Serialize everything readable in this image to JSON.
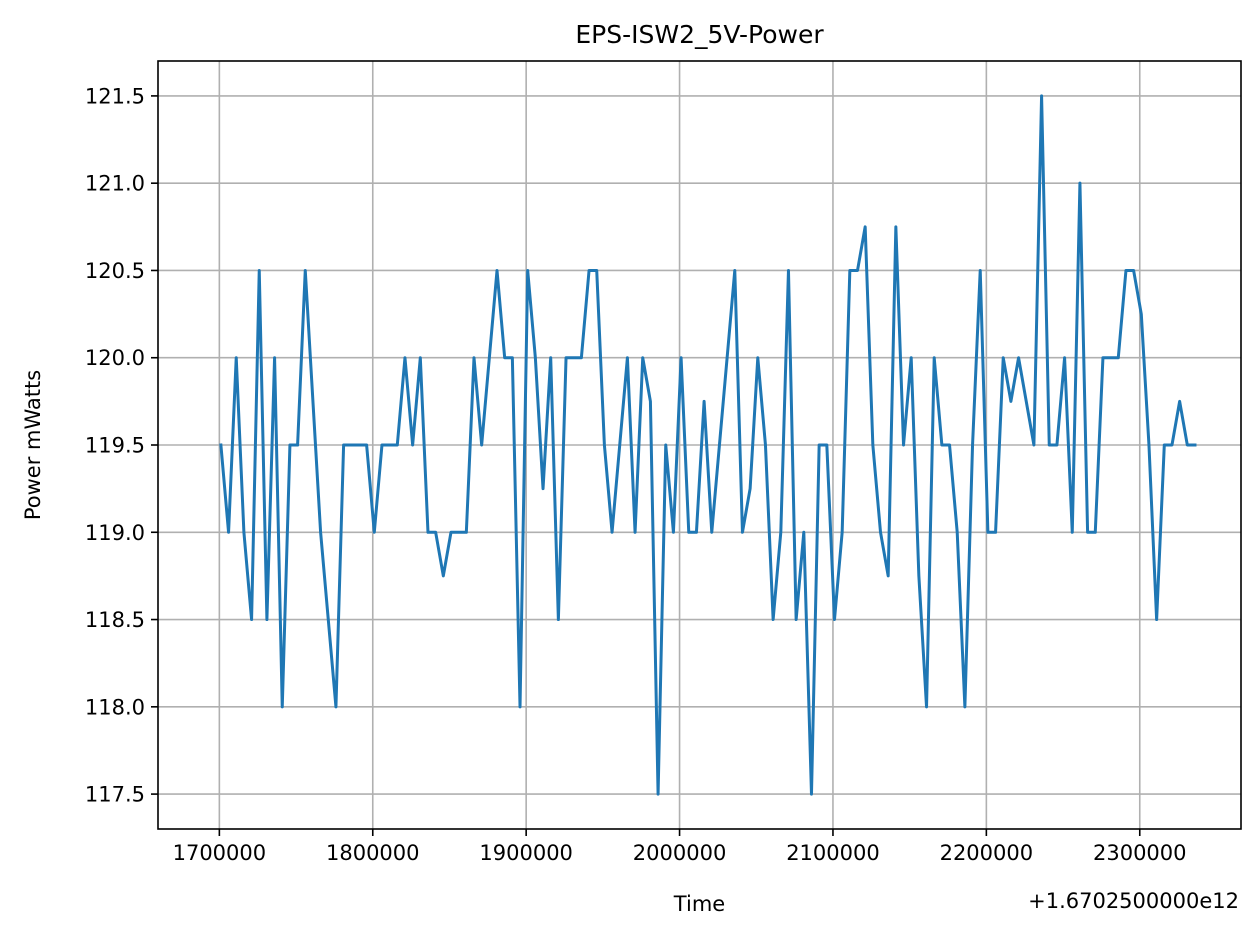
{
  "chart_data": {
    "type": "line",
    "title": "EPS-ISW2_5V-Power",
    "xlabel": "Time",
    "ylabel": "Power mWatts",
    "x_offset_label": "+1.6702500000e12",
    "grid": true,
    "xlim": [
      1670251660000,
      1670252366000
    ],
    "ylim": [
      117.3,
      121.7
    ],
    "x_ticks": [
      {
        "value": 1670251700000,
        "label": "1700000"
      },
      {
        "value": 1670251800000,
        "label": "1800000"
      },
      {
        "value": 1670251900000,
        "label": "1900000"
      },
      {
        "value": 1670252000000,
        "label": "2000000"
      },
      {
        "value": 1670252100000,
        "label": "2100000"
      },
      {
        "value": 1670252200000,
        "label": "2200000"
      },
      {
        "value": 1670252300000,
        "label": "2300000"
      }
    ],
    "y_ticks": [
      {
        "value": 117.5,
        "label": "117.5"
      },
      {
        "value": 118.0,
        "label": "118.0"
      },
      {
        "value": 118.5,
        "label": "118.5"
      },
      {
        "value": 119.0,
        "label": "119.0"
      },
      {
        "value": 119.5,
        "label": "119.5"
      },
      {
        "value": 120.0,
        "label": "120.0"
      },
      {
        "value": 120.5,
        "label": "120.5"
      },
      {
        "value": 121.0,
        "label": "121.0"
      },
      {
        "value": 121.5,
        "label": "121.5"
      }
    ],
    "series": [
      {
        "color": "#1f77b4",
        "x": [
          1670251701000,
          1670251706000,
          1670251711000,
          1670251716000,
          1670251721000,
          1670251726000,
          1670251731000,
          1670251736000,
          1670251741000,
          1670251746000,
          1670251751000,
          1670251756000,
          1670251761000,
          1670251766000,
          1670251771000,
          1670251776000,
          1670251781000,
          1670251786000,
          1670251791000,
          1670251796000,
          1670251801000,
          1670251806000,
          1670251811000,
          1670251816000,
          1670251821000,
          1670251826000,
          1670251831000,
          1670251836000,
          1670251841000,
          1670251846000,
          1670251851000,
          1670251856000,
          1670251861000,
          1670251866000,
          1670251871000,
          1670251876000,
          1670251881000,
          1670251886000,
          1670251891000,
          1670251896000,
          1670251901000,
          1670251906000,
          1670251911000,
          1670251916000,
          1670251921000,
          1670251926000,
          1670251931000,
          1670251936000,
          1670251941000,
          1670251946000,
          1670251951000,
          1670251956000,
          1670251961000,
          1670251966000,
          1670251971000,
          1670251976000,
          1670251981000,
          1670251986000,
          1670251991000,
          1670251996000,
          1670252001000,
          1670252006000,
          1670252011000,
          1670252016000,
          1670252021000,
          1670252026000,
          1670252031000,
          1670252036000,
          1670252041000,
          1670252046000,
          1670252051000,
          1670252056000,
          1670252061000,
          1670252066000,
          1670252071000,
          1670252076000,
          1670252081000,
          1670252086000,
          1670252091000,
          1670252096000,
          1670252101000,
          1670252106000,
          1670252111000,
          1670252116000,
          1670252121000,
          1670252126000,
          1670252131000,
          1670252136000,
          1670252141000,
          1670252146000,
          1670252151000,
          1670252156000,
          1670252161000,
          1670252166000,
          1670252171000,
          1670252176000,
          1670252181000,
          1670252186000,
          1670252191000,
          1670252196000,
          1670252201000,
          1670252206000,
          1670252211000,
          1670252216000,
          1670252221000,
          1670252226000,
          1670252231000,
          1670252236000,
          1670252241000,
          1670252246000,
          1670252251000,
          1670252256000,
          1670252261000,
          1670252266000,
          1670252271000,
          1670252276000,
          1670252281000,
          1670252286000,
          1670252291000,
          1670252296000,
          1670252301000,
          1670252306000,
          1670252311000,
          1670252316000,
          1670252321000,
          1670252326000,
          1670252331000,
          1670252336000
        ],
        "y": [
          119.5,
          119.0,
          120.0,
          119.0,
          118.5,
          120.5,
          118.5,
          120.0,
          118.0,
          119.5,
          119.5,
          120.5,
          119.75,
          119.0,
          118.5,
          118.0,
          119.5,
          119.5,
          119.5,
          119.5,
          119.0,
          119.5,
          119.5,
          119.5,
          120.0,
          119.5,
          120.0,
          119.0,
          119.0,
          118.75,
          119.0,
          119.0,
          119.0,
          120.0,
          119.5,
          120.0,
          120.5,
          120.0,
          120.0,
          118.0,
          120.5,
          120.0,
          119.25,
          120.0,
          118.5,
          120.0,
          120.0,
          120.0,
          120.5,
          120.5,
          119.5,
          119.0,
          119.5,
          120.0,
          119.0,
          120.0,
          119.75,
          117.5,
          119.5,
          119.0,
          120.0,
          119.0,
          119.0,
          119.75,
          119.0,
          119.5,
          120.0,
          120.5,
          119.0,
          119.25,
          120.0,
          119.5,
          118.5,
          119.0,
          120.5,
          118.5,
          119.0,
          117.5,
          119.5,
          119.5,
          118.5,
          119.0,
          120.5,
          120.5,
          120.75,
          119.5,
          119.0,
          118.75,
          120.75,
          119.5,
          120.0,
          118.75,
          118.0,
          120.0,
          119.5,
          119.5,
          119.0,
          118.0,
          119.5,
          120.5,
          119.0,
          119.0,
          120.0,
          119.75,
          120.0,
          119.75,
          119.5,
          121.5,
          119.5,
          119.5,
          120.0,
          119.0,
          121.0,
          119.0,
          119.0,
          120.0,
          120.0,
          120.0,
          120.5,
          120.5,
          120.25,
          119.5,
          118.5,
          119.5,
          119.5,
          119.75,
          119.5,
          119.5
        ]
      }
    ]
  }
}
